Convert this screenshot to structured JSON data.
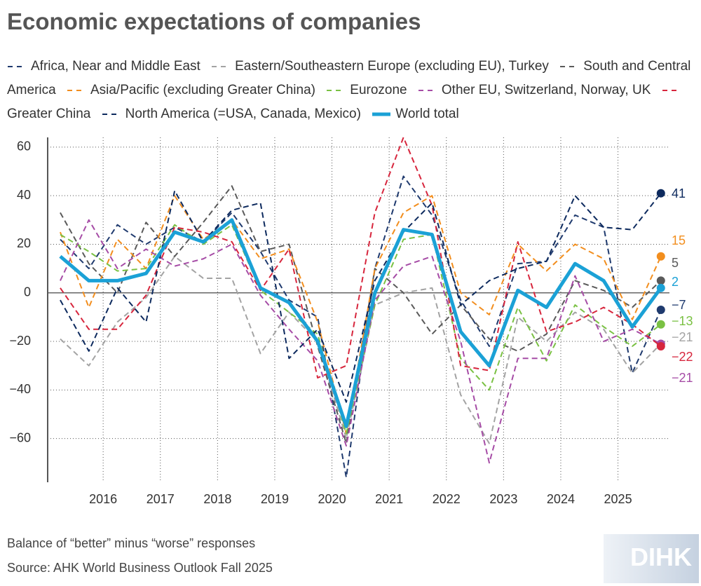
{
  "chart_data": {
    "type": "line",
    "title": "Economic expectations of companies",
    "subtitle": "Balance of “better” minus “worse” responses",
    "source": "Source: AHK World Business Outlook Fall 2025",
    "logo": "DIHK",
    "x": [
      2015.25,
      2015.75,
      2016.25,
      2016.75,
      2017.25,
      2017.75,
      2018.25,
      2018.75,
      2019.25,
      2019.75,
      2020.25,
      2020.75,
      2021.25,
      2021.75,
      2022.25,
      2022.75,
      2023.25,
      2023.75,
      2024.25,
      2024.75,
      2025.25,
      2025.75
    ],
    "xlim": [
      2015.03,
      2025.9
    ],
    "xticks": [
      2016,
      2017,
      2018,
      2019,
      2020,
      2021,
      2022,
      2023,
      2024,
      2025
    ],
    "ylim": [
      -78,
      64
    ],
    "yticks": [
      {
        "value": -60,
        "label": "−60"
      },
      {
        "value": -40,
        "label": "−40"
      },
      {
        "value": -20,
        "label": "−20"
      },
      0,
      20,
      40,
      60
    ],
    "grid": true,
    "series": [
      {
        "name": "Africa, Near and Middle East",
        "color": "#1f3a6e",
        "style": "dashed",
        "end_label": "−7",
        "values": [
          22,
          10,
          28,
          20,
          27,
          21,
          33,
          17,
          -3,
          -10,
          -76,
          10,
          48,
          32,
          -3,
          -22,
          12,
          13,
          32,
          27,
          -33,
          -7
        ]
      },
      {
        "name": "Eastern/Southeastern Europe (excluding EU), Turkey",
        "color": "#a3a3a3",
        "style": "dashed",
        "end_label": "−21",
        "values": [
          -19,
          -30,
          -12,
          -2,
          15,
          6,
          6,
          -25,
          -8,
          -20,
          -60,
          -5,
          0,
          2,
          -42,
          -62,
          -10,
          -20,
          -8,
          -15,
          -33,
          -21
        ]
      },
      {
        "name": "South and Central America",
        "color": "#5a5a5a",
        "style": "dashed",
        "end_label": "5",
        "values": [
          33,
          12,
          0,
          29,
          15,
          29,
          44,
          17,
          20,
          -22,
          -62,
          10,
          0,
          -17,
          -5,
          -19,
          -24,
          -17,
          5,
          1,
          -6,
          5
        ]
      },
      {
        "name": "Asia/Pacific (excluding Greater China)",
        "color": "#f28e1e",
        "style": "dashed",
        "end_label": "15",
        "values": [
          25,
          -6,
          22,
          10,
          40,
          22,
          30,
          14,
          18,
          -12,
          -58,
          10,
          33,
          40,
          0,
          -9,
          20,
          9,
          20,
          14,
          -11,
          15
        ]
      },
      {
        "name": "Eurozone",
        "color": "#7ac143",
        "style": "dashed",
        "end_label": "−13",
        "values": [
          24,
          17,
          9,
          10,
          28,
          20,
          28,
          1,
          -8,
          -17,
          -58,
          -5,
          22,
          24,
          -27,
          -40,
          -6,
          -28,
          -5,
          -14,
          -22,
          -13
        ]
      },
      {
        "name": "Other EU, Switzerland, Norway, UK",
        "color": "#a64ca6",
        "style": "dashed",
        "end_label": "−21",
        "values": [
          5,
          30,
          10,
          18,
          11,
          14,
          20,
          -1,
          -15,
          -28,
          -63,
          -3,
          11,
          15,
          -20,
          -70,
          -27,
          -27,
          7,
          -20,
          -15,
          -21
        ]
      },
      {
        "name": "Greater China",
        "color": "#d7263d",
        "style": "dashed",
        "end_label": "−22",
        "values": [
          2,
          -15,
          -15,
          -1,
          27,
          25,
          21,
          1,
          18,
          -35,
          -30,
          33,
          64,
          36,
          -30,
          -32,
          21,
          -16,
          -12,
          -6,
          -13,
          -22
        ]
      },
      {
        "name": "North America (=USA, Canada, Mexico)",
        "color": "#0d2a5e",
        "style": "dashed",
        "end_label": "41",
        "values": [
          -3,
          -24,
          2,
          -12,
          42,
          21,
          34,
          37,
          -27,
          -15,
          -45,
          5,
          25,
          37,
          -5,
          5,
          10,
          13,
          40,
          27,
          26,
          41
        ]
      },
      {
        "name": "World total",
        "color": "#1ba1d6",
        "style": "solid",
        "end_label": "2",
        "values": [
          15,
          5,
          5,
          8,
          25,
          21,
          30,
          2,
          -4,
          -20,
          -55,
          0,
          26,
          24,
          -16,
          -30,
          1,
          -6,
          12,
          5,
          -14,
          2
        ]
      }
    ]
  }
}
